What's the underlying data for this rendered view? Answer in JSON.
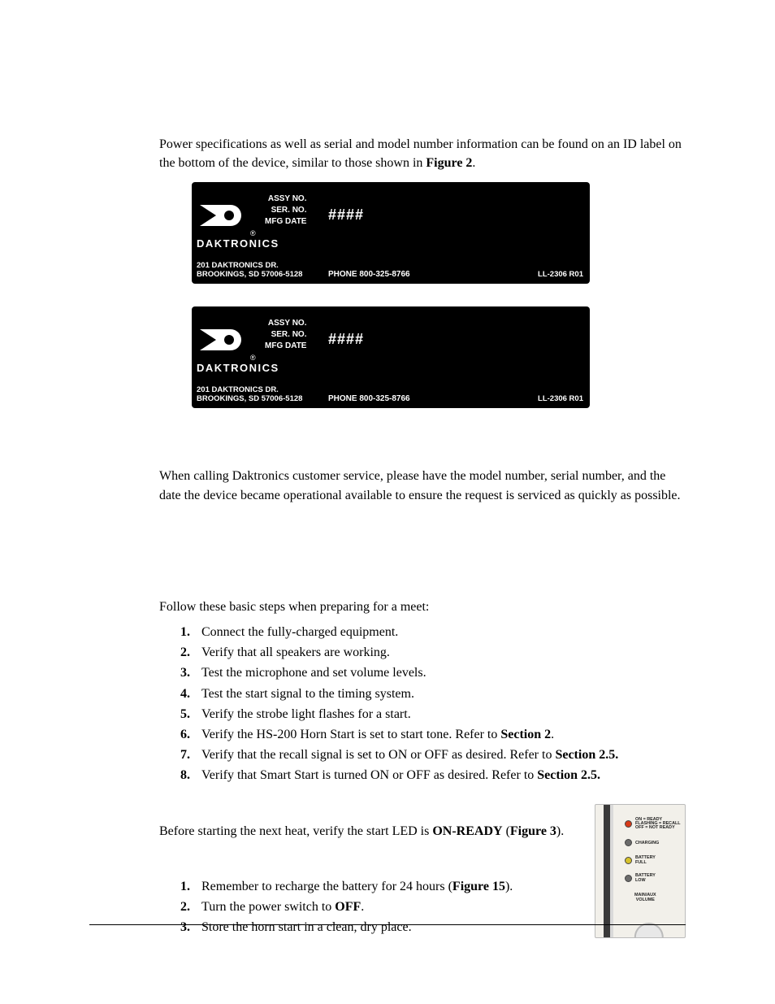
{
  "intro": {
    "p1_a": "Power specifications as well as serial and model number information can be found on an ID label on the bottom of the device, similar to those shown in ",
    "p1_b_bold": "Figure 2",
    "p1_c": "."
  },
  "label": {
    "assy": "ASSY NO.",
    "ser": "SER. NO.",
    "mfg": "MFG DATE",
    "brand": "DAKTRONICS",
    "addr1": "201 DAKTRONICS DR.",
    "addr2": "BROOKINGS, SD  57006-5128",
    "phone": "PHONE  800-325-8766",
    "hash": "####",
    "code": "LL-2306 R01"
  },
  "service": {
    "p": "When calling Daktronics customer service, please have the model number, serial number, and the date the device became operational available to ensure the request is serviced as quickly as possible."
  },
  "prep": {
    "intro": "Follow these basic steps when preparing for a meet:",
    "steps": [
      "Connect the fully-charged equipment.",
      "Verify that all speakers are working.",
      "Test the microphone and set volume levels.",
      "Test the start signal to the timing system.",
      "Verify the strobe light flashes for a start."
    ],
    "step6_a": "Verify the HS-200 Horn Start is set to start tone. Refer to ",
    "step6_b": "Section 2",
    "step6_c": ".",
    "step7_a": "Verify that the recall signal is set to ON or OFF as desired. Refer to ",
    "step7_b": "Section 2.5.",
    "step8_a": "Verify that Smart Start is turned ON or OFF as desired. Refer to ",
    "step8_b": "Section 2.5."
  },
  "after": {
    "p_a": "Before starting the next heat, verify the start LED is ",
    "p_b": "ON-READY",
    "p_c": " (",
    "p_d": "Figure 3",
    "p_e": ").",
    "steps1_a": "Remember to recharge the battery for 24 hours (",
    "steps1_b": "Figure 15",
    "steps1_c": ").",
    "steps2_a": "Turn the power switch to ",
    "steps2_b": "OFF",
    "steps2_c": ".",
    "steps3": "Store the horn start in a clean, dry place."
  },
  "device": {
    "led1_text": "ON = READY\nFLASHING = RECALL\nOFF = NOT READY",
    "led1_color": "#d83a18",
    "led2_text": "CHARGING",
    "led2_color": "#6b6b6b",
    "led3_text": "BATTERY\nFULL",
    "led3_color": "#d6c22a",
    "led4_text": "BATTERY\nLOW",
    "led4_color": "#6b6b6b",
    "vol_text": "MAIN/AUX\nVOLUME"
  }
}
